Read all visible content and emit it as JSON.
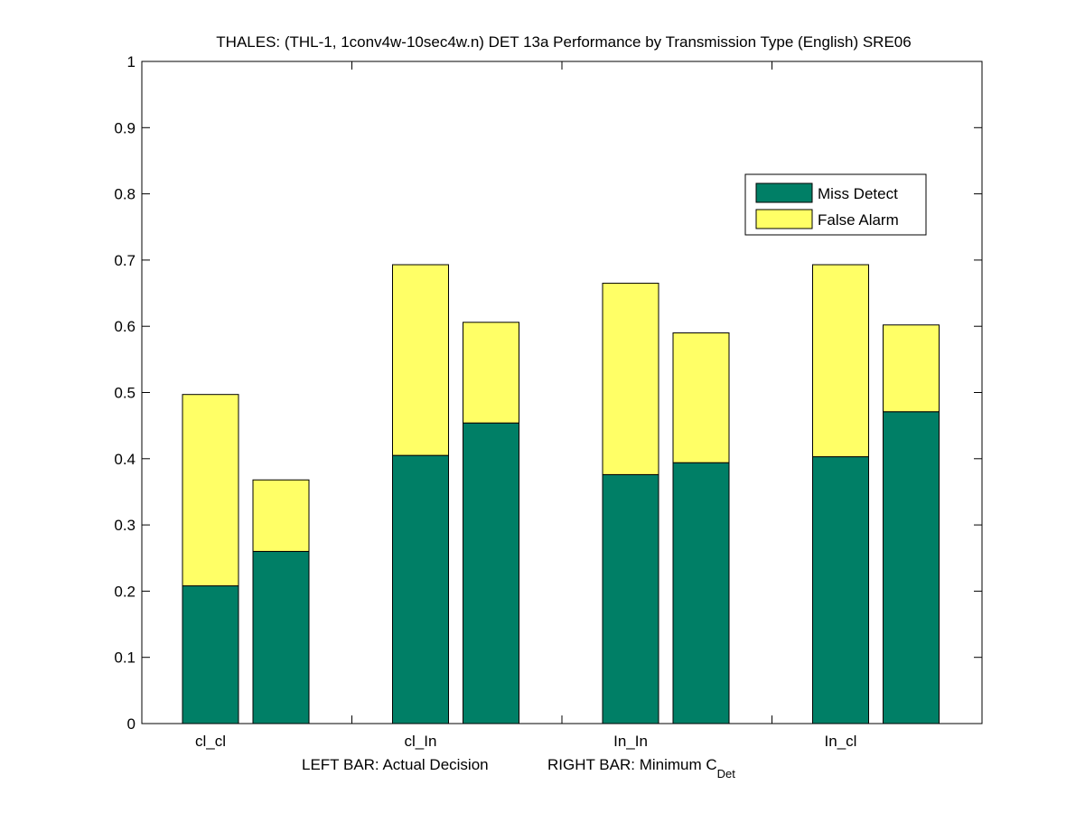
{
  "chart_data": {
    "type": "bar",
    "stacked": true,
    "grouped": true,
    "title": "THALES: (THL-1, 1conv4w-10sec4w.n) DET 13a Performance by Transmission Type (English) SRE06",
    "xlabel_left": "LEFT BAR: Actual Decision",
    "xlabel_right_prefix": "RIGHT BAR: Minimum C",
    "xlabel_right_sub": "Det",
    "categories": [
      "cl_cl",
      "cl_In",
      "In_In",
      "In_cl"
    ],
    "ylim": [
      0,
      1
    ],
    "yticks": [
      "0",
      "0.1",
      "0.2",
      "0.3",
      "0.4",
      "0.5",
      "0.6",
      "0.7",
      "0.8",
      "0.9",
      "1"
    ],
    "legend_position": "top-right",
    "series": [
      {
        "name": "Miss Detect",
        "color": "#007f66"
      },
      {
        "name": "False Alarm",
        "color": "#ffff66"
      }
    ],
    "groups": [
      {
        "category": "cl_cl",
        "actual": {
          "miss": 0.208,
          "total": 0.497
        },
        "minimum": {
          "miss": 0.26,
          "total": 0.368
        }
      },
      {
        "category": "cl_In",
        "actual": {
          "miss": 0.405,
          "total": 0.693
        },
        "minimum": {
          "miss": 0.454,
          "total": 0.606
        }
      },
      {
        "category": "In_In",
        "actual": {
          "miss": 0.376,
          "total": 0.665
        },
        "minimum": {
          "miss": 0.394,
          "total": 0.59
        }
      },
      {
        "category": "In_cl",
        "actual": {
          "miss": 0.403,
          "total": 0.693
        },
        "minimum": {
          "miss": 0.471,
          "total": 0.602
        }
      }
    ]
  }
}
